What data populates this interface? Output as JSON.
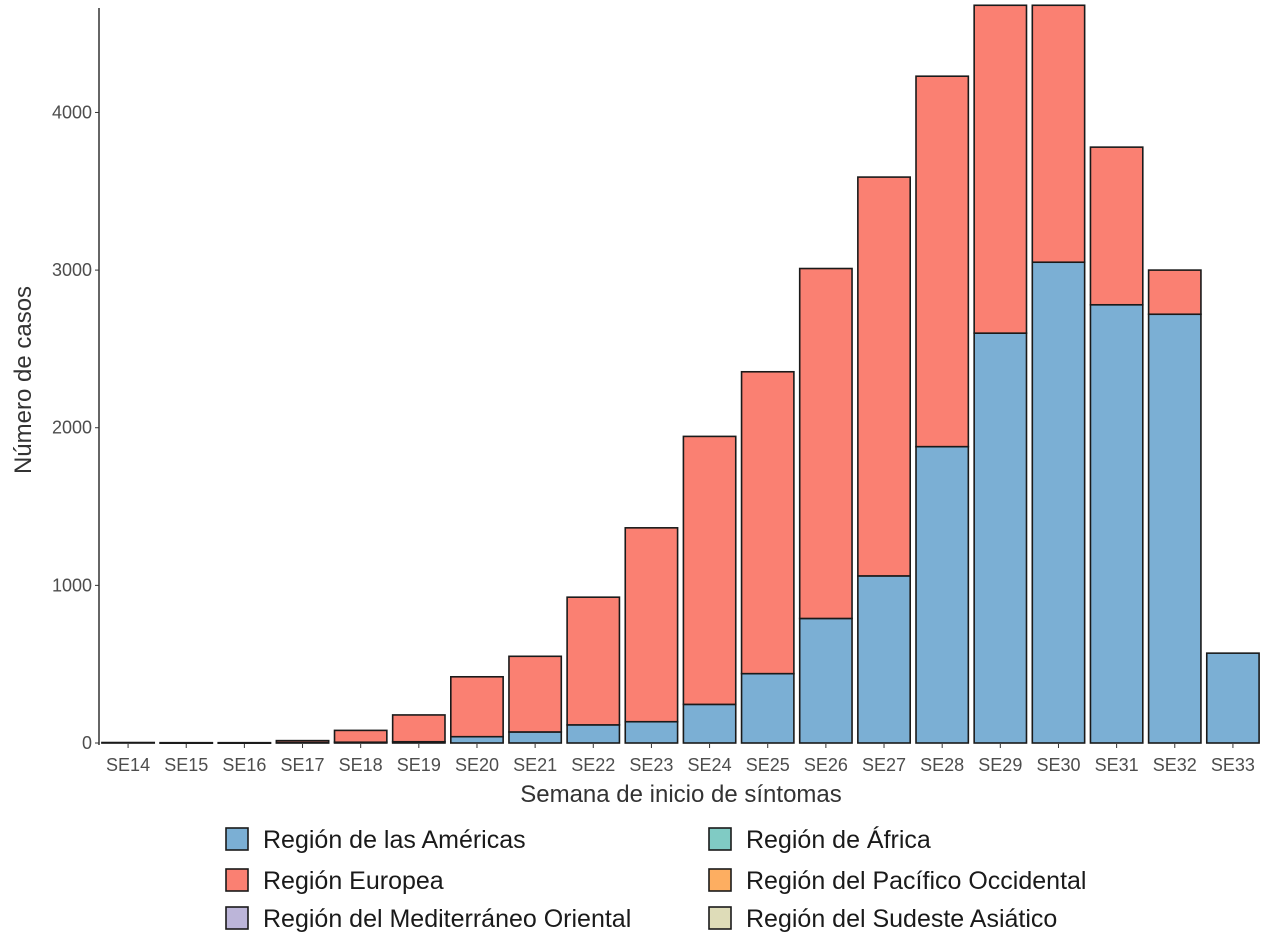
{
  "chart_data": {
    "type": "bar",
    "stacked": true,
    "title": "",
    "xlabel": "Semana de inicio de síntomas",
    "ylabel": "Número de casos",
    "ylim": [
      0,
      4650
    ],
    "yticks": [
      0,
      1000,
      2000,
      3000,
      4000
    ],
    "grid": false,
    "legend_position": "bottom",
    "categories": [
      "SE14",
      "SE15",
      "SE16",
      "SE17",
      "SE18",
      "SE19",
      "SE20",
      "SE21",
      "SE22",
      "SE23",
      "SE24",
      "SE25",
      "SE26",
      "SE27",
      "SE28",
      "SE29",
      "SE30",
      "SE31",
      "SE32",
      "SE33"
    ],
    "series": [
      {
        "name": "Región de las Américas",
        "color": "#7bafd4",
        "values": [
          0,
          0,
          0,
          3,
          5,
          8,
          40,
          70,
          115,
          135,
          245,
          440,
          790,
          1060,
          1880,
          2600,
          3050,
          2780,
          2720,
          570
        ]
      },
      {
        "name": "Región Europea",
        "color": "#fa8072",
        "values": [
          3,
          2,
          2,
          12,
          75,
          170,
          380,
          480,
          810,
          1230,
          1700,
          1915,
          2220,
          2530,
          2350,
          2080,
          1630,
          1000,
          280,
          0
        ]
      },
      {
        "name": "Región de África",
        "color": "#80cbc4",
        "values": [
          0,
          0,
          0,
          0,
          0,
          0,
          0,
          0,
          0,
          0,
          0,
          0,
          0,
          0,
          0,
          0,
          0,
          0,
          0,
          0
        ]
      },
      {
        "name": "Región del Pacífico Occidental",
        "color": "#fdae61",
        "values": [
          0,
          0,
          0,
          0,
          0,
          0,
          0,
          0,
          0,
          0,
          0,
          0,
          0,
          0,
          0,
          0,
          0,
          0,
          0,
          0
        ]
      },
      {
        "name": "Región del Mediterráneo Oriental",
        "color": "#bcb5d9",
        "values": [
          0,
          0,
          0,
          0,
          0,
          0,
          0,
          0,
          0,
          0,
          0,
          0,
          0,
          0,
          0,
          0,
          0,
          0,
          0,
          0
        ]
      },
      {
        "name": "Región del Sudeste Asiático",
        "color": "#dedcb8",
        "values": [
          0,
          0,
          0,
          0,
          0,
          0,
          0,
          0,
          0,
          0,
          0,
          0,
          0,
          0,
          0,
          0,
          0,
          0,
          0,
          0
        ]
      }
    ],
    "legend_order": [
      0,
      2,
      1,
      3,
      4,
      5
    ]
  }
}
